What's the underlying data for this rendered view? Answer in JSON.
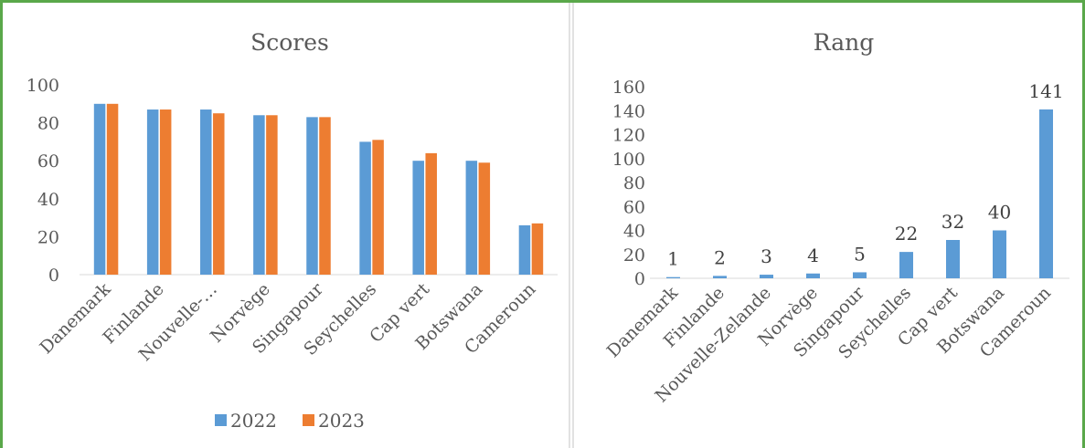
{
  "chart_data": [
    {
      "type": "bar",
      "title": "Scores",
      "categories": [
        "Danemark",
        "Finlande",
        "Nouvelle-…",
        "Norvège",
        "Singapour",
        "Seychelles",
        "Cap vert",
        "Botswana",
        "Cameroun"
      ],
      "series": [
        {
          "name": "2022",
          "color": "#5b9bd5",
          "values": [
            90,
            87,
            87,
            84,
            83,
            70,
            60,
            60,
            26
          ]
        },
        {
          "name": "2023",
          "color": "#ed7d31",
          "values": [
            90,
            87,
            85,
            84,
            83,
            71,
            64,
            59,
            27
          ]
        }
      ],
      "yticks": [
        "0",
        "20",
        "40",
        "60",
        "80",
        "100"
      ],
      "ylim": [
        0,
        100
      ],
      "grid": false,
      "legend": "bottom"
    },
    {
      "type": "bar",
      "title": "Rang",
      "categories": [
        "Danemark",
        "Finlande",
        "Nouvelle-Zelande",
        "Norvège",
        "Singapour",
        "Seychelles",
        "Cap vert",
        "Botswana",
        "Cameroun"
      ],
      "series": [
        {
          "color": "#5b9bd5",
          "values": [
            1,
            2,
            3,
            4,
            5,
            22,
            32,
            40,
            141
          ],
          "labels": [
            "1",
            "2",
            "3",
            "4",
            "5",
            "22",
            "32",
            "40",
            "141"
          ]
        }
      ],
      "yticks": [
        "0",
        "20",
        "40",
        "60",
        "80",
        "100",
        "120",
        "140",
        "160"
      ],
      "ylim": [
        0,
        160
      ],
      "grid": false,
      "legend": "none"
    }
  ]
}
